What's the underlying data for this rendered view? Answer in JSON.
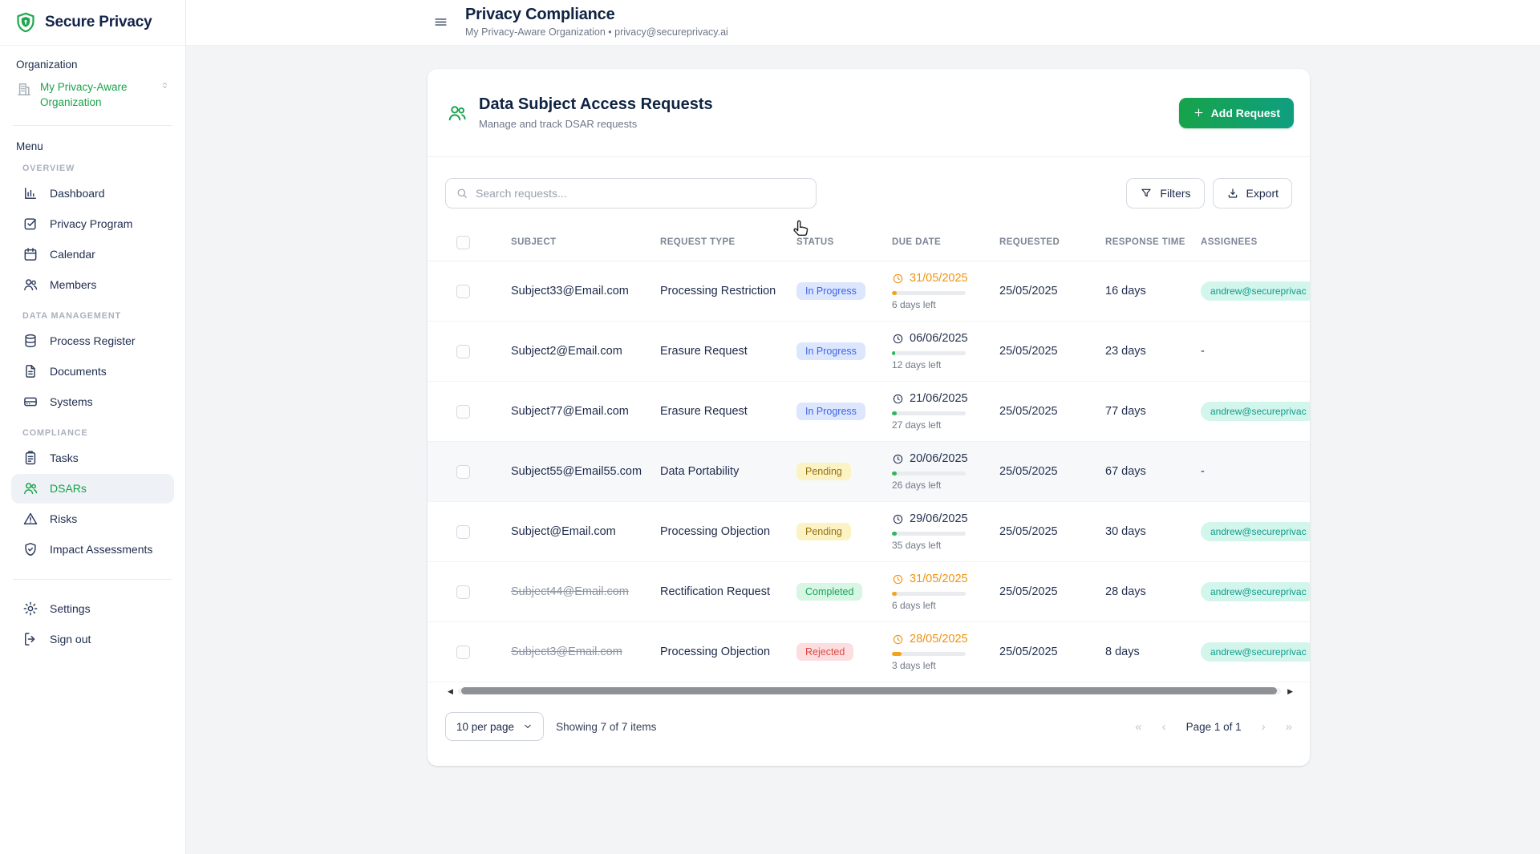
{
  "brand": {
    "name": "Secure Privacy",
    "logo_icon": "shield-logo-icon"
  },
  "colors": {
    "brand_green": "#16a34a",
    "brand_teal": "#0d9488",
    "navy": "#0f2342",
    "urgent_orange": "#ef930e"
  },
  "sidebar": {
    "organization_label": "Organization",
    "organization_name": "My Privacy-Aware Organization",
    "menu_label": "Menu",
    "sections": [
      {
        "label": "OVERVIEW",
        "items": [
          {
            "label": "Dashboard",
            "icon": "dashboard-icon"
          },
          {
            "label": "Privacy Program",
            "icon": "check-square-icon"
          },
          {
            "label": "Calendar",
            "icon": "calendar-icon"
          },
          {
            "label": "Members",
            "icon": "users-icon"
          }
        ]
      },
      {
        "label": "DATA MANAGEMENT",
        "items": [
          {
            "label": "Process Register",
            "icon": "database-icon"
          },
          {
            "label": "Documents",
            "icon": "document-icon"
          },
          {
            "label": "Systems",
            "icon": "server-icon"
          }
        ]
      },
      {
        "label": "COMPLIANCE",
        "items": [
          {
            "label": "Tasks",
            "icon": "clipboard-icon"
          },
          {
            "label": "DSARs",
            "icon": "users-icon",
            "active": true
          },
          {
            "label": "Risks",
            "icon": "warning-icon"
          },
          {
            "label": "Impact Assessments",
            "icon": "shield-check-icon"
          }
        ]
      }
    ],
    "footer_items": [
      {
        "label": "Settings",
        "icon": "gear-icon"
      },
      {
        "label": "Sign out",
        "icon": "signout-icon"
      }
    ]
  },
  "header": {
    "title": "Privacy Compliance",
    "subtitle": "My Privacy-Aware Organization • privacy@secureprivacy.ai"
  },
  "dsar": {
    "title": "Data Subject Access Requests",
    "subtitle": "Manage and track DSAR requests",
    "add_request_label": "Add Request",
    "search_placeholder": "Search requests...",
    "filters_label": "Filters",
    "export_label": "Export"
  },
  "table": {
    "columns": [
      "SUBJECT",
      "REQUEST TYPE",
      "STATUS",
      "DUE DATE",
      "REQUESTED",
      "RESPONSE TIME",
      "ASSIGNEES"
    ],
    "rows": [
      {
        "subject": "Subject33@Email.com",
        "struck": false,
        "request_type": "Processing Restriction",
        "status": "In Progress",
        "status_kind": "inprogress",
        "due_date": "31/05/2025",
        "due_urgent": true,
        "days_left": "6 days left",
        "progress_pct": 6,
        "progress_color": "orange",
        "requested": "25/05/2025",
        "response_time": "16 days",
        "assignee": "andrew@secureprivac"
      },
      {
        "subject": "Subject2@Email.com",
        "struck": false,
        "request_type": "Erasure Request",
        "status": "In Progress",
        "status_kind": "inprogress",
        "due_date": "06/06/2025",
        "due_urgent": false,
        "days_left": "12 days left",
        "progress_pct": 4,
        "progress_color": "green",
        "requested": "25/05/2025",
        "response_time": "23 days",
        "assignee": "-"
      },
      {
        "subject": "Subject77@Email.com",
        "struck": false,
        "request_type": "Erasure Request",
        "status": "In Progress",
        "status_kind": "inprogress",
        "due_date": "21/06/2025",
        "due_urgent": false,
        "days_left": "27 days left",
        "progress_pct": 6,
        "progress_color": "green",
        "requested": "25/05/2025",
        "response_time": "77 days",
        "assignee": "andrew@secureprivac"
      },
      {
        "subject": "Subject55@Email55.com",
        "struck": false,
        "request_type": "Data Portability",
        "status": "Pending",
        "status_kind": "pending",
        "due_date": "20/06/2025",
        "due_urgent": false,
        "days_left": "26 days left",
        "progress_pct": 6,
        "progress_color": "green",
        "requested": "25/05/2025",
        "response_time": "67 days",
        "assignee": "-",
        "shaded": true
      },
      {
        "subject": "Subject@Email.com",
        "struck": false,
        "request_type": "Processing Objection",
        "status": "Pending",
        "status_kind": "pending",
        "due_date": "29/06/2025",
        "due_urgent": false,
        "days_left": "35 days left",
        "progress_pct": 6,
        "progress_color": "green",
        "requested": "25/05/2025",
        "response_time": "30 days",
        "assignee": "andrew@secureprivac"
      },
      {
        "subject": "Subject44@Email.com",
        "struck": true,
        "request_type": "Rectification Request",
        "status": "Completed",
        "status_kind": "completed",
        "due_date": "31/05/2025",
        "due_urgent": true,
        "days_left": "6 days left",
        "progress_pct": 7,
        "progress_color": "orange",
        "requested": "25/05/2025",
        "response_time": "28 days",
        "assignee": "andrew@secureprivac"
      },
      {
        "subject": "Subject3@Email.com",
        "struck": true,
        "request_type": "Processing Objection",
        "status": "Rejected",
        "status_kind": "rejected",
        "due_date": "28/05/2025",
        "due_urgent": true,
        "days_left": "3 days left",
        "progress_pct": 13,
        "progress_color": "orange",
        "requested": "25/05/2025",
        "response_time": "8 days",
        "assignee": "andrew@secureprivac"
      }
    ]
  },
  "pagination": {
    "per_page_label": "10 per page",
    "showing_label": "Showing 7 of 7 items",
    "page_label": "Page 1 of 1",
    "first_icon": "«",
    "prev_icon": "‹",
    "next_icon": "›",
    "last_icon": "»"
  }
}
